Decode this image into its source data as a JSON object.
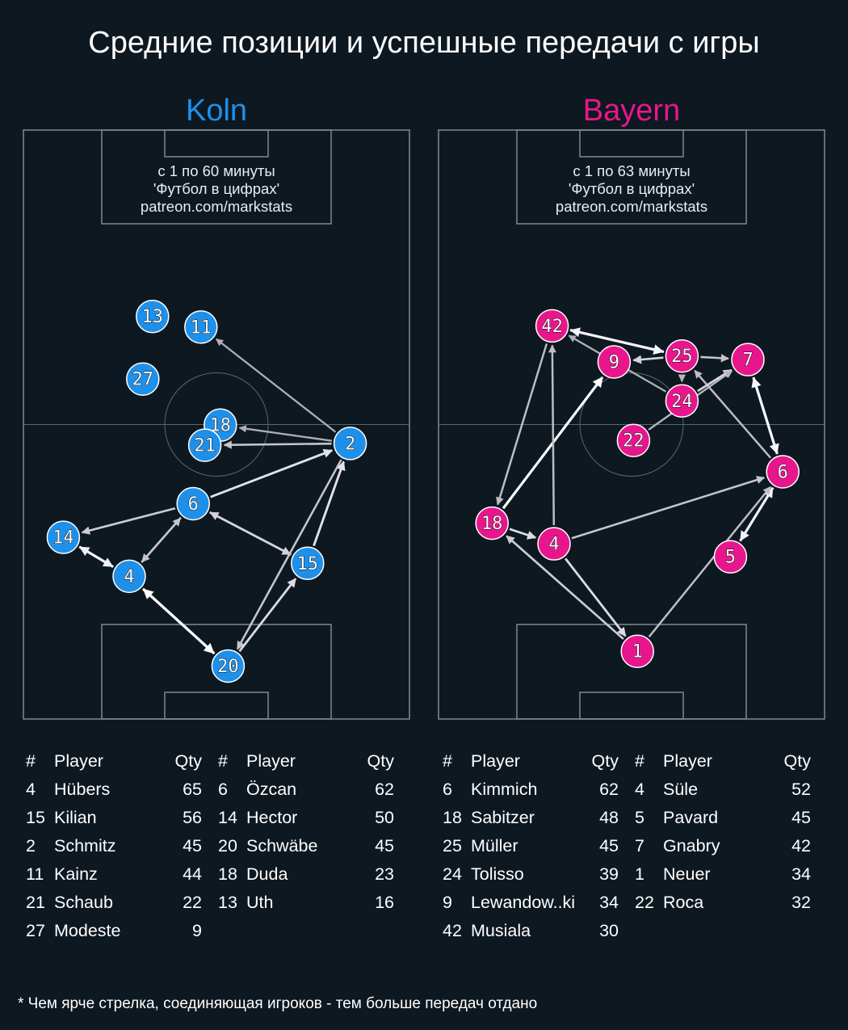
{
  "title": "Средние позиции и успешные передачи с игры",
  "footnote": "* Чем ярче стрелка, соединяющая игроков - тем больше передач отдано",
  "colors": {
    "background": "#0e1820",
    "koln": "#1e90ea",
    "bayern": "#e8168c",
    "pitch_lines": "#7d8a90"
  },
  "chart_data": [
    {
      "type": "network",
      "team": "Koln",
      "note_lines": [
        "с 1 по 60 минуты",
        "'Футбол в цифрах'",
        "patreon.com/markstats"
      ],
      "color": "#1e90ea",
      "pitch": {
        "x_range": [
          0,
          100
        ],
        "y_range": [
          0,
          100
        ],
        "attack_direction": "up"
      },
      "players": [
        {
          "num": "13",
          "x": 33.5,
          "y": 68.3
        },
        {
          "num": "11",
          "x": 46.0,
          "y": 66.5
        },
        {
          "num": "27",
          "x": 31.0,
          "y": 57.7
        },
        {
          "num": "18",
          "x": 51.0,
          "y": 49.9
        },
        {
          "num": "21",
          "x": 47.0,
          "y": 46.5
        },
        {
          "num": "2",
          "x": 84.5,
          "y": 46.8
        },
        {
          "num": "6",
          "x": 44.0,
          "y": 36.6
        },
        {
          "num": "14",
          "x": 10.5,
          "y": 30.9
        },
        {
          "num": "4",
          "x": 27.5,
          "y": 24.3
        },
        {
          "num": "15",
          "x": 73.5,
          "y": 26.5
        },
        {
          "num": "20",
          "x": 53.0,
          "y": 9.1
        }
      ],
      "passes": [
        {
          "from": "4",
          "to": "20",
          "strength": 1.0
        },
        {
          "from": "20",
          "to": "4",
          "strength": 1.0
        },
        {
          "from": "14",
          "to": "4",
          "strength": 0.9
        },
        {
          "from": "4",
          "to": "14",
          "strength": 0.9
        },
        {
          "from": "6",
          "to": "2",
          "strength": 0.8
        },
        {
          "from": "15",
          "to": "2",
          "strength": 0.8
        },
        {
          "from": "20",
          "to": "15",
          "strength": 0.75
        },
        {
          "from": "6",
          "to": "15",
          "strength": 0.7
        },
        {
          "from": "15",
          "to": "6",
          "strength": 0.7
        },
        {
          "from": "4",
          "to": "6",
          "strength": 0.6
        },
        {
          "from": "6",
          "to": "4",
          "strength": 0.6
        },
        {
          "from": "6",
          "to": "14",
          "strength": 0.65
        },
        {
          "from": "2",
          "to": "20",
          "strength": 0.6
        },
        {
          "from": "2",
          "to": "21",
          "strength": 0.6
        },
        {
          "from": "2",
          "to": "18",
          "strength": 0.45
        },
        {
          "from": "2",
          "to": "11",
          "strength": 0.45
        }
      ],
      "table": [
        {
          "num": "4",
          "player": "Hübers",
          "qty": 65
        },
        {
          "num": "15",
          "player": "Kilian",
          "qty": 56
        },
        {
          "num": "2",
          "player": "Schmitz",
          "qty": 45
        },
        {
          "num": "11",
          "player": "Kainz",
          "qty": 44
        },
        {
          "num": "21",
          "player": "Schaub",
          "qty": 22
        },
        {
          "num": "27",
          "player": "Modeste",
          "qty": 9
        },
        {
          "num": "6",
          "player": "Özcan",
          "qty": 62
        },
        {
          "num": "14",
          "player": "Hector",
          "qty": 50
        },
        {
          "num": "20",
          "player": "Schwäbe",
          "qty": 45
        },
        {
          "num": "18",
          "player": "Duda",
          "qty": 23
        },
        {
          "num": "13",
          "player": "Uth",
          "qty": 16
        }
      ]
    },
    {
      "type": "network",
      "team": "Bayern",
      "note_lines": [
        "с 1 по 63 минуты",
        "'Футбол в цифрах'",
        "patreon.com/markstats"
      ],
      "color": "#e8168c",
      "pitch": {
        "x_range": [
          0,
          100
        ],
        "y_range": [
          0,
          100
        ],
        "attack_direction": "up"
      },
      "players": [
        {
          "num": "42",
          "x": 29.5,
          "y": 66.7
        },
        {
          "num": "9",
          "x": 45.5,
          "y": 60.6
        },
        {
          "num": "25",
          "x": 63.0,
          "y": 61.6
        },
        {
          "num": "7",
          "x": 80.0,
          "y": 61.0
        },
        {
          "num": "24",
          "x": 63.0,
          "y": 54.0
        },
        {
          "num": "22",
          "x": 50.5,
          "y": 47.3
        },
        {
          "num": "6",
          "x": 89.0,
          "y": 42.0
        },
        {
          "num": "18",
          "x": 14.0,
          "y": 33.3
        },
        {
          "num": "4",
          "x": 30.0,
          "y": 29.8
        },
        {
          "num": "5",
          "x": 75.5,
          "y": 27.6
        },
        {
          "num": "1",
          "x": 51.5,
          "y": 11.6
        }
      ],
      "passes": [
        {
          "from": "18",
          "to": "9",
          "strength": 1.0
        },
        {
          "from": "42",
          "to": "25",
          "strength": 1.0
        },
        {
          "from": "25",
          "to": "42",
          "strength": 0.9
        },
        {
          "from": "6",
          "to": "7",
          "strength": 0.95
        },
        {
          "from": "7",
          "to": "6",
          "strength": 0.95
        },
        {
          "from": "5",
          "to": "6",
          "strength": 0.9
        },
        {
          "from": "6",
          "to": "5",
          "strength": 0.9
        },
        {
          "from": "4",
          "to": "1",
          "strength": 0.75
        },
        {
          "from": "1",
          "to": "18",
          "strength": 0.65
        },
        {
          "from": "42",
          "to": "18",
          "strength": 0.55
        },
        {
          "from": "4",
          "to": "42",
          "strength": 0.55
        },
        {
          "from": "18",
          "to": "4",
          "strength": 0.75
        },
        {
          "from": "4",
          "to": "6",
          "strength": 0.6
        },
        {
          "from": "1",
          "to": "6",
          "strength": 0.55
        },
        {
          "from": "6",
          "to": "25",
          "strength": 0.55
        },
        {
          "from": "24",
          "to": "7",
          "strength": 0.7
        },
        {
          "from": "24",
          "to": "42",
          "strength": 0.45
        },
        {
          "from": "25",
          "to": "9",
          "strength": 0.7
        },
        {
          "from": "25",
          "to": "7",
          "strength": 0.6
        },
        {
          "from": "25",
          "to": "24",
          "strength": 0.5
        },
        {
          "from": "22",
          "to": "7",
          "strength": 0.5
        }
      ],
      "table": [
        {
          "num": "6",
          "player": "Kimmich",
          "qty": 62
        },
        {
          "num": "18",
          "player": "Sabitzer",
          "qty": 48
        },
        {
          "num": "25",
          "player": "Müller",
          "qty": 45
        },
        {
          "num": "24",
          "player": "Tolisso",
          "qty": 39
        },
        {
          "num": "9",
          "player": "Lewandow..ki",
          "qty": 34
        },
        {
          "num": "42",
          "player": "Musiala",
          "qty": 30
        },
        {
          "num": "4",
          "player": "Süle",
          "qty": 52
        },
        {
          "num": "5",
          "player": "Pavard",
          "qty": 45
        },
        {
          "num": "7",
          "player": "Gnabry",
          "qty": 42
        },
        {
          "num": "1",
          "player": "Neuer",
          "qty": 34
        },
        {
          "num": "22",
          "player": "Roca",
          "qty": 32
        }
      ]
    }
  ],
  "table_headers": {
    "num": "#",
    "player": "Player",
    "qty": "Qty"
  }
}
